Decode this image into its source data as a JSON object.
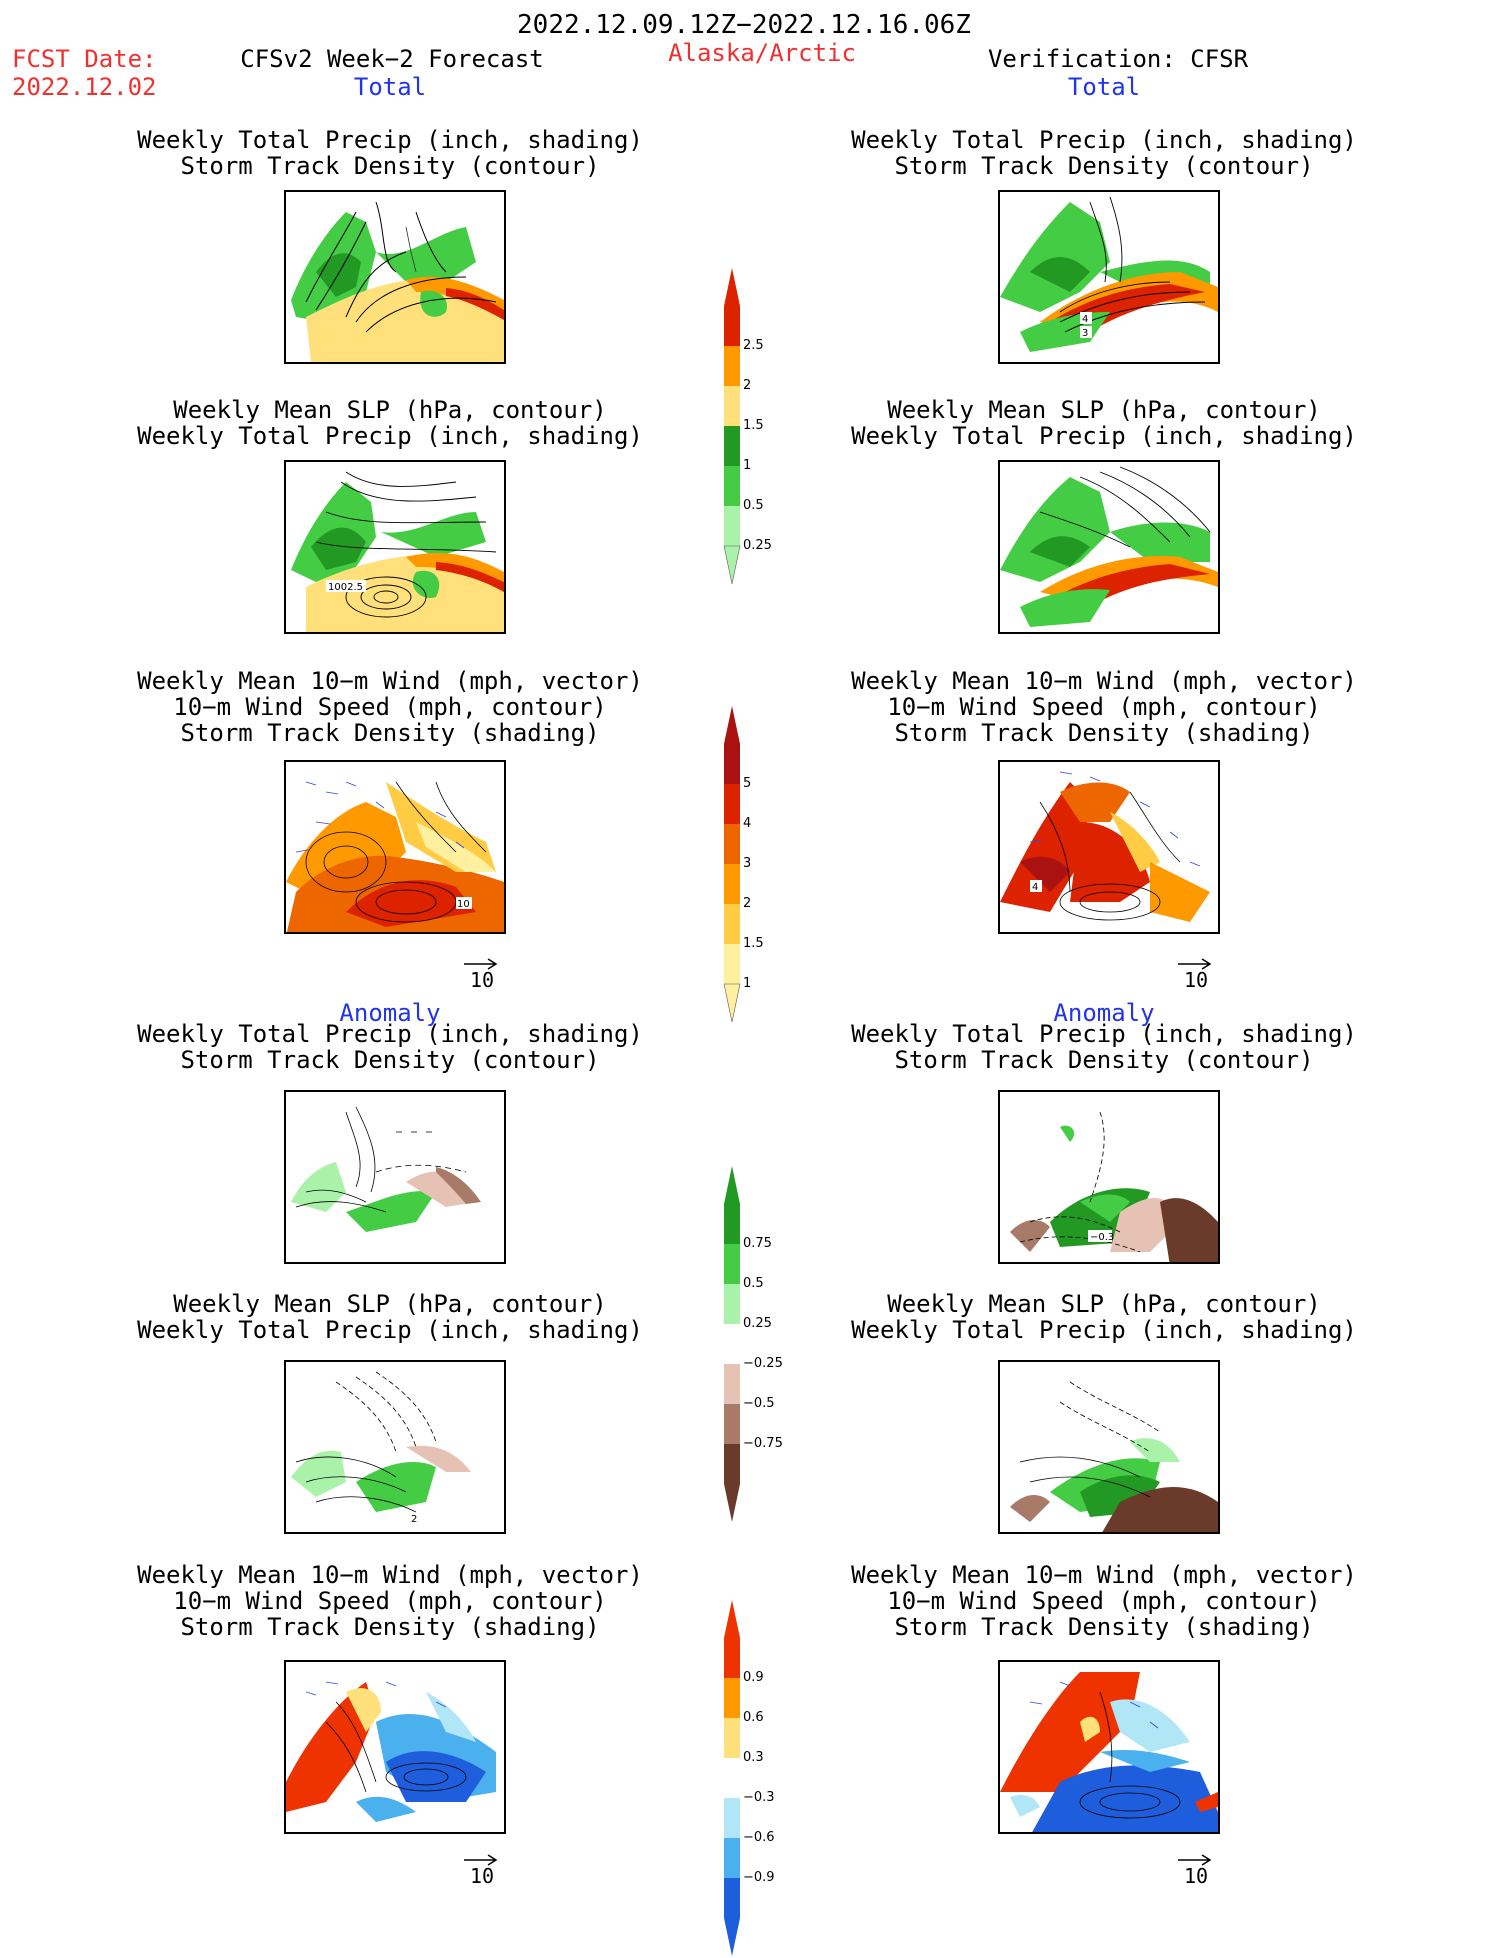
{
  "header": {
    "period": "2022.12.09.12Z−2022.12.16.06Z",
    "fcst_label": "FCST Date:",
    "fcst_date": "2022.12.02",
    "left_model": "CFSv2 Week−2 Forecast",
    "region": "Alaska/Arctic",
    "verification": "Verification: CFSR"
  },
  "sections": {
    "total": "Total",
    "anomaly": "Anomaly"
  },
  "panel_titles": {
    "precip_storm": [
      "Weekly Total Precip (inch, shading)",
      "Storm Track Density (contour)"
    ],
    "slp_precip": [
      "Weekly Mean SLP (hPa, contour)",
      "Weekly Total Precip (inch, shading)"
    ],
    "wind_storm": [
      "Weekly Mean 10−m Wind (mph, vector)",
      "10−m Wind Speed (mph, contour)",
      "Storm Track Density (shading)"
    ]
  },
  "map_labels": {
    "total_left_slp": "1002.5",
    "total_left_wind": "10",
    "total_right_precip_a": "4",
    "total_right_precip_b": "3",
    "total_right_wind": "4",
    "anom_right_precip": "−0.3",
    "anom_left_slp": "2"
  },
  "vector_ref": "10",
  "colorbars": {
    "precip_total": {
      "labels": [
        "2.5",
        "2",
        "1.5",
        "1",
        "0.5",
        "0.25"
      ],
      "colors": [
        "#dd2200",
        "#ff9900",
        "#ffe07a",
        "#229922",
        "#44cc44",
        "#aaf2aa"
      ]
    },
    "storm_total": {
      "labels": [
        "5",
        "4",
        "3",
        "2",
        "1.5",
        "1"
      ],
      "colors": [
        "#aa1111",
        "#dd2200",
        "#ee6600",
        "#ff9900",
        "#ffcc44",
        "#fff0a0"
      ]
    },
    "precip_anom": {
      "labels": [
        "0.75",
        "0.5",
        "0.25",
        "−0.25",
        "−0.5",
        "−0.75"
      ],
      "colors": [
        "#229922",
        "#44cc44",
        "#aaf2aa",
        "#ffffff",
        "#e6c2b5",
        "#a87a68",
        "#6a3b2a"
      ]
    },
    "storm_anom": {
      "labels": [
        "0.9",
        "0.6",
        "0.3",
        "−0.3",
        "−0.6",
        "−0.9"
      ],
      "colors": [
        "#ee3300",
        "#ff9900",
        "#ffe07a",
        "#ffffff",
        "#b0e6f6",
        "#4ab0ee",
        "#1e5edd"
      ]
    }
  }
}
